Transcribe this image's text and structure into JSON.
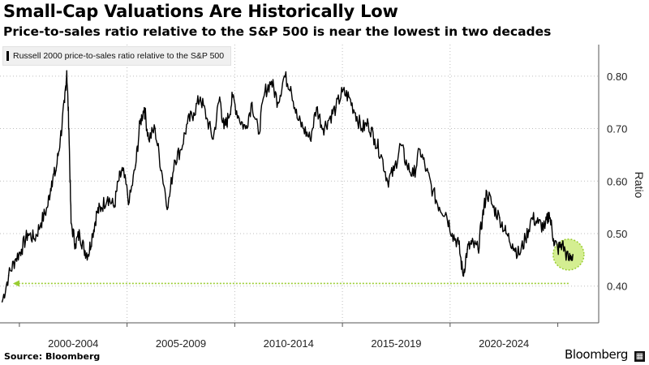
{
  "title": "Small-Cap Valuations Are Historically Low",
  "subtitle": "Price-to-sales ratio relative to the S&P 500 is near the lowest in two decades",
  "source": "Source: Bloomberg",
  "brand": "Bloomberg",
  "colors": {
    "series": "#000000",
    "grid": "#bdbdbd",
    "highlight": "#9acd32",
    "highlight_fill": "#c5e86c",
    "legend_bg": "#f0f0f0"
  },
  "chart_data": {
    "type": "line",
    "title": "Small-Cap Valuations Are Historically Low",
    "subtitle": "Price-to-sales ratio relative to the S&P 500 is near the lowest in two decades",
    "ylabel": "Ratio",
    "xlabel": "",
    "ylim": [
      0.33,
      0.86
    ],
    "xlim": [
      1998.6,
      2026.4
    ],
    "yticks": [
      0.4,
      0.5,
      0.6,
      0.7,
      0.8
    ],
    "ytick_labels": [
      "0.40",
      "0.50",
      "0.60",
      "0.70",
      "0.80"
    ],
    "x_tick_labels": [
      "2000-2004",
      "2005-2009",
      "2010-2014",
      "2015-2019",
      "2020-2024"
    ],
    "x_tick_positions": [
      2002,
      2007,
      2012,
      2017,
      2022
    ],
    "grid": true,
    "y_axis_position": "right",
    "legend_position": "top-left",
    "series": [
      {
        "name": "Russell 2000 price-to-sales ratio relative to the S&P 500",
        "x": [
          1998.7,
          1999.0,
          1999.3,
          1999.6,
          1999.9,
          2000.2,
          2000.5,
          2000.8,
          2001.0,
          2001.2,
          2001.4,
          2001.6,
          2001.7,
          2001.8,
          2001.9,
          2002.1,
          2002.3,
          2002.5,
          2002.7,
          2002.9,
          2003.1,
          2003.3,
          2003.6,
          2003.9,
          2004.1,
          2004.3,
          2004.6,
          2004.9,
          2005.1,
          2005.3,
          2005.5,
          2005.8,
          2006.1,
          2006.4,
          2006.7,
          2007.0,
          2007.3,
          2007.6,
          2007.9,
          2008.2,
          2008.5,
          2008.8,
          2009.0,
          2009.2,
          2009.4,
          2009.7,
          2010.0,
          2010.3,
          2010.6,
          2010.9,
          2011.2,
          2011.5,
          2011.8,
          2012.1,
          2012.4,
          2012.7,
          2013.0,
          2013.3,
          2013.6,
          2013.9,
          2014.2,
          2014.5,
          2014.8,
          2015.1,
          2015.4,
          2015.7,
          2016.0,
          2016.3,
          2016.6,
          2016.9,
          2017.2,
          2017.5,
          2017.8,
          2018.1,
          2018.4,
          2018.7,
          2019.0,
          2019.3,
          2019.6,
          2019.9,
          2020.1,
          2020.3,
          2020.5,
          2020.8,
          2021.0,
          2021.2,
          2021.5,
          2021.8,
          2022.1,
          2022.4,
          2022.7,
          2023.0,
          2023.3,
          2023.6,
          2023.9,
          2024.1,
          2024.3,
          2024.5,
          2024.7,
          2025.0,
          2025.2
        ],
        "y": [
          0.37,
          0.42,
          0.45,
          0.47,
          0.5,
          0.49,
          0.52,
          0.55,
          0.6,
          0.62,
          0.68,
          0.75,
          0.81,
          0.7,
          0.52,
          0.48,
          0.5,
          0.47,
          0.46,
          0.5,
          0.54,
          0.55,
          0.57,
          0.55,
          0.6,
          0.62,
          0.56,
          0.63,
          0.71,
          0.74,
          0.68,
          0.7,
          0.62,
          0.55,
          0.64,
          0.66,
          0.71,
          0.73,
          0.76,
          0.72,
          0.68,
          0.76,
          0.7,
          0.72,
          0.76,
          0.72,
          0.7,
          0.75,
          0.69,
          0.77,
          0.79,
          0.75,
          0.8,
          0.78,
          0.72,
          0.7,
          0.68,
          0.74,
          0.7,
          0.72,
          0.74,
          0.77,
          0.76,
          0.73,
          0.7,
          0.71,
          0.68,
          0.65,
          0.6,
          0.62,
          0.67,
          0.63,
          0.61,
          0.66,
          0.62,
          0.58,
          0.55,
          0.54,
          0.5,
          0.48,
          0.42,
          0.47,
          0.48,
          0.47,
          0.53,
          0.58,
          0.55,
          0.53,
          0.5,
          0.48,
          0.46,
          0.49,
          0.53,
          0.52,
          0.51,
          0.54,
          0.49,
          0.47,
          0.48,
          0.45,
          0.46
        ]
      }
    ],
    "annotations": [
      {
        "type": "horizontal_arrow",
        "y": 0.405,
        "x_from": 2025.0,
        "x_to": 1999.2
      },
      {
        "type": "highlight_circle",
        "x": 2025.0,
        "y": 0.46
      }
    ]
  }
}
